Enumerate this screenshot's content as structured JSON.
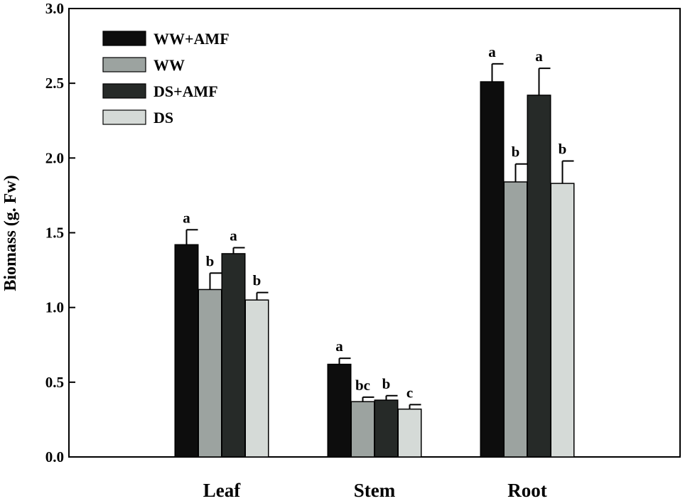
{
  "chart_data": {
    "type": "bar",
    "title": "",
    "xlabel": "",
    "ylabel": "Biomass (g. Fw)",
    "ylim": [
      0,
      3.0
    ],
    "y_ticks": [
      "0.0",
      "0.5",
      "1.0",
      "1.5",
      "2.0",
      "2.5",
      "3.0"
    ],
    "y_tick_values": [
      0,
      0.5,
      1.0,
      1.5,
      2.0,
      2.5,
      3.0
    ],
    "categories": [
      "Leaf",
      "Stem",
      "Root"
    ],
    "legend_position": "top-left",
    "series": [
      {
        "name": "WW+AMF",
        "color": "#0d0d0d",
        "values": [
          1.42,
          0.62,
          2.51
        ],
        "errors": [
          0.1,
          0.04,
          0.12
        ],
        "sig": [
          "a",
          "a",
          "a"
        ]
      },
      {
        "name": "WW",
        "color": "#9ca3a0",
        "values": [
          1.12,
          0.37,
          1.84
        ],
        "errors": [
          0.11,
          0.03,
          0.12
        ],
        "sig": [
          "b",
          "bc",
          "b"
        ]
      },
      {
        "name": "DS+AMF",
        "color": "#262a28",
        "values": [
          1.36,
          0.38,
          2.42
        ],
        "errors": [
          0.04,
          0.03,
          0.18
        ],
        "sig": [
          "a",
          "b",
          "a"
        ]
      },
      {
        "name": "DS",
        "color": "#d5dad7",
        "values": [
          1.05,
          0.32,
          1.83
        ],
        "errors": [
          0.05,
          0.03,
          0.15
        ],
        "sig": [
          "b",
          "c",
          "b"
        ]
      }
    ]
  }
}
